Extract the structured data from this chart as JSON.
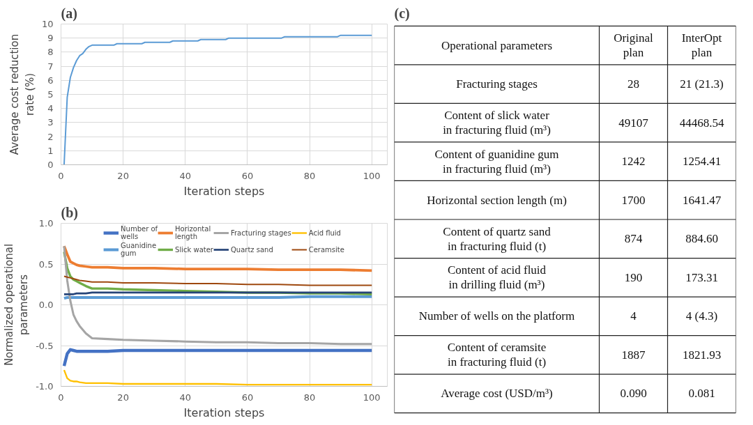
{
  "chart_data": [
    {
      "type": "line",
      "title": "(a)",
      "xlabel": "Iteration steps",
      "ylabel": "Average cost reduction\nrate (%)",
      "xlim": [
        0,
        105
      ],
      "ylim": [
        0,
        10
      ],
      "xticks": [
        0,
        20,
        40,
        60,
        80,
        100
      ],
      "yticks": [
        0,
        1,
        2,
        3,
        4,
        5,
        6,
        7,
        8,
        9,
        10
      ],
      "grid": true,
      "legend": false,
      "x": [
        1,
        2,
        3,
        4,
        5,
        6,
        7,
        8,
        9,
        10,
        17,
        18,
        26,
        27,
        35,
        36,
        44,
        45,
        53,
        54,
        71,
        72,
        89,
        90,
        100
      ],
      "series": [
        {
          "color": "#5b9bd5",
          "values": [
            0,
            4.8,
            6.2,
            6.9,
            7.4,
            7.75,
            7.9,
            8.2,
            8.4,
            8.5,
            8.5,
            8.6,
            8.6,
            8.7,
            8.7,
            8.8,
            8.8,
            8.9,
            8.9,
            9.0,
            9.0,
            9.1,
            9.1,
            9.2,
            9.2
          ]
        }
      ]
    },
    {
      "type": "line",
      "title": "(b)",
      "xlabel": "Iteration steps",
      "ylabel": "Normalized operational\nparameters",
      "xlim": [
        0,
        105
      ],
      "ylim": [
        -1,
        1
      ],
      "xticks": [
        0,
        20,
        40,
        60,
        80,
        100
      ],
      "yticks": [
        {
          "value": -1,
          "label": "-1.0"
        },
        {
          "value": -0.5,
          "label": "-0.5"
        },
        {
          "value": 0,
          "label": "0.0"
        },
        {
          "value": 0.5,
          "label": "0.5"
        },
        {
          "value": 1,
          "label": "1.0"
        }
      ],
      "grid": true,
      "legend": "top",
      "x": [
        1,
        2,
        3,
        4,
        5,
        6,
        8,
        10,
        15,
        20,
        30,
        40,
        50,
        60,
        70,
        80,
        90,
        100
      ],
      "series": [
        {
          "name": "Number of\nwells",
          "color": "#4472c4",
          "values": [
            -0.75,
            -0.6,
            -0.55,
            -0.56,
            -0.57,
            -0.57,
            -0.57,
            -0.57,
            -0.57,
            -0.56,
            -0.56,
            -0.56,
            -0.56,
            -0.56,
            -0.56,
            -0.56,
            -0.56,
            -0.56
          ]
        },
        {
          "name": "Guanidine\ngum",
          "color": "#5b9bd5",
          "values": [
            0.08,
            0.09,
            0.09,
            0.09,
            0.09,
            0.09,
            0.09,
            0.09,
            0.09,
            0.09,
            0.09,
            0.09,
            0.09,
            0.09,
            0.09,
            0.1,
            0.1,
            0.1
          ]
        },
        {
          "name": "Horizontal\nlength",
          "color": "#ed7d31",
          "values": [
            0.72,
            0.62,
            0.53,
            0.51,
            0.49,
            0.48,
            0.47,
            0.46,
            0.46,
            0.45,
            0.45,
            0.44,
            0.44,
            0.44,
            0.43,
            0.43,
            0.43,
            0.42
          ]
        },
        {
          "name": "Slick water",
          "color": "#70ad47",
          "values": [
            0.65,
            0.45,
            0.35,
            0.31,
            0.29,
            0.27,
            0.23,
            0.2,
            0.2,
            0.19,
            0.18,
            0.17,
            0.16,
            0.15,
            0.15,
            0.14,
            0.14,
            0.13
          ]
        },
        {
          "name": "Fracturing stages",
          "color": "#a5a5a5",
          "values": [
            0.72,
            0.3,
            0.05,
            -0.12,
            -0.2,
            -0.26,
            -0.35,
            -0.41,
            -0.42,
            -0.43,
            -0.44,
            -0.45,
            -0.46,
            -0.46,
            -0.47,
            -0.47,
            -0.48,
            -0.48
          ]
        },
        {
          "name": "Quartz sand",
          "color": "#264478",
          "values": [
            0.13,
            0.13,
            0.13,
            0.13,
            0.14,
            0.14,
            0.14,
            0.15,
            0.15,
            0.15,
            0.15,
            0.15,
            0.15,
            0.15,
            0.15,
            0.15,
            0.15,
            0.15
          ]
        },
        {
          "name": "Acid fluid",
          "color": "#ffc000",
          "values": [
            -0.8,
            -0.9,
            -0.93,
            -0.94,
            -0.94,
            -0.95,
            -0.96,
            -0.96,
            -0.96,
            -0.97,
            -0.97,
            -0.97,
            -0.97,
            -0.98,
            -0.98,
            -0.98,
            -0.98,
            -0.98
          ]
        },
        {
          "name": "Ceramsite",
          "color": "#9e480e",
          "values": [
            0.35,
            0.34,
            0.33,
            0.32,
            0.31,
            0.3,
            0.29,
            0.28,
            0.28,
            0.27,
            0.27,
            0.26,
            0.26,
            0.25,
            0.25,
            0.24,
            0.24,
            0.24
          ]
        }
      ]
    },
    {
      "type": "other",
      "title": "(c)",
      "annotations": [
        "Operational parameters",
        "Original\nplan",
        "InterOpt\nplan",
        "Fracturing stages",
        "28",
        "21 (21.3)",
        "Content of slick water\nin fracturing fluid (m³)",
        "49107",
        "44468.54",
        "Content of guanidine gum\nin fracturing fluid (m³)",
        "1242",
        "1254.41",
        "Horizontal section length (m)",
        "1700",
        "1641.47",
        "Content of quartz sand\nin fracturing fluid (t)",
        "874",
        "884.60",
        "Content of acid fluid\nin drilling fluid (m³)",
        "190",
        "173.31",
        "Number of wells on the platform",
        "4",
        "4 (4.3)",
        "Content of ceramsite\nin fracturing fluid (t)",
        "1887",
        "1821.93",
        "Average cost (USD/m³)",
        "0.090",
        "0.081"
      ]
    }
  ]
}
